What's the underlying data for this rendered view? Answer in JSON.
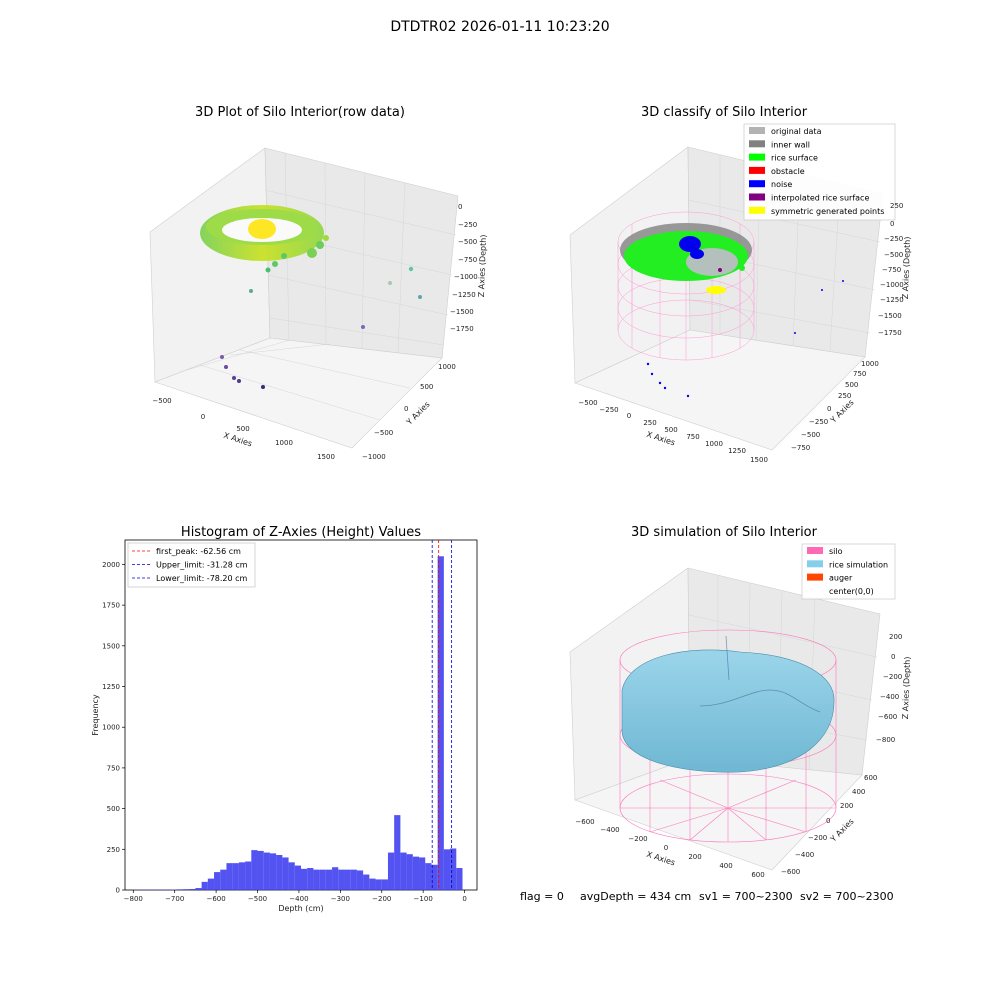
{
  "figure": {
    "suptitle": "DTDTR02 2026-01-11 10:23:20",
    "footer": {
      "flag": "flag = 0",
      "avg_depth": "avgDepth = 434 cm",
      "sv1": "sv1 = 700~2300",
      "sv2": "sv2 = 700~2300"
    }
  },
  "panels": {
    "raw": {
      "title": "3D Plot of Silo Interior(row data)",
      "xlabel": "X Axies",
      "ylabel": "Y Axies",
      "zlabel": "Z Axies (Depth)",
      "xticks": [
        "−500",
        "0",
        "500",
        "1000",
        "1500"
      ],
      "yticks": [
        "−1000",
        "−500",
        "0",
        "500",
        "1000"
      ],
      "zticks": [
        "0",
        "−250",
        "−500",
        "−750",
        "−1000",
        "−1250",
        "−1500",
        "−1750"
      ]
    },
    "classify": {
      "title": "3D classify of Silo Interior",
      "xlabel": "X Axies",
      "ylabel": "Y Axies",
      "zlabel": "Z Axies (Depth)",
      "xticks": [
        "−500",
        "−250",
        "0",
        "250",
        "500",
        "750",
        "1000",
        "1250",
        "1500"
      ],
      "yticks": [
        "−750",
        "−500",
        "−250",
        "0",
        "250",
        "500",
        "750",
        "1000"
      ],
      "zticks": [
        "250",
        "0",
        "−250",
        "−500",
        "−750",
        "−1000",
        "−1250",
        "−1500",
        "−1750"
      ],
      "legend": [
        {
          "label": "original data",
          "color": "#b3b3b3"
        },
        {
          "label": "inner wall",
          "color": "#808080"
        },
        {
          "label": "rice surface",
          "color": "#00ff00"
        },
        {
          "label": "obstacle",
          "color": "#ff0000"
        },
        {
          "label": "noise",
          "color": "#0000ff"
        },
        {
          "label": "interpolated rice surface",
          "color": "#800080"
        },
        {
          "label": "symmetric generated points",
          "color": "#ffff00"
        }
      ]
    },
    "simulation": {
      "title": "3D simulation of Silo Interior",
      "xlabel": "X Axies",
      "ylabel": "Y Axies",
      "zlabel": "Z Axies (Depth)",
      "xticks": [
        "−600",
        "−400",
        "−200",
        "0",
        "200",
        "400",
        "600"
      ],
      "yticks": [
        "−600",
        "−400",
        "−200",
        "0",
        "200",
        "400",
        "600"
      ],
      "zticks": [
        "200",
        "0",
        "−200",
        "−400",
        "−600",
        "−800"
      ],
      "legend": [
        {
          "label": "silo",
          "color": "#ff69b4"
        },
        {
          "label": "rice simulation",
          "color": "#87ceeb"
        },
        {
          "label": "auger",
          "color": "#ff4500"
        },
        {
          "label": "center(0,0)",
          "color": "#ffffff"
        }
      ]
    }
  },
  "chart_data": {
    "type": "bar",
    "title": "Histogram of Z-Axies (Height) Values",
    "xlabel": "Depth (cm)",
    "ylabel": "Frequency",
    "xlim": [
      -820,
      30
    ],
    "ylim": [
      0,
      2150
    ],
    "xticks": [
      -800,
      -700,
      -600,
      -500,
      -400,
      -300,
      -200,
      -100,
      0
    ],
    "yticks": [
      0,
      250,
      500,
      750,
      1000,
      1250,
      1500,
      1750,
      2000
    ],
    "bin_width": 15,
    "bin_starts": [
      -800,
      -785,
      -770,
      -755,
      -740,
      -725,
      -710,
      -695,
      -680,
      -665,
      -650,
      -635,
      -620,
      -605,
      -590,
      -575,
      -560,
      -545,
      -530,
      -515,
      -500,
      -485,
      -470,
      -455,
      -440,
      -425,
      -410,
      -395,
      -380,
      -365,
      -350,
      -335,
      -320,
      -305,
      -290,
      -275,
      -260,
      -245,
      -230,
      -215,
      -200,
      -185,
      -170,
      -155,
      -140,
      -125,
      -110,
      -95,
      -80,
      -65,
      -50,
      -35,
      -20
    ],
    "values": [
      2,
      2,
      2,
      2,
      2,
      2,
      3,
      4,
      5,
      6,
      12,
      50,
      70,
      110,
      125,
      165,
      165,
      170,
      175,
      245,
      240,
      230,
      225,
      215,
      200,
      170,
      150,
      130,
      135,
      125,
      125,
      125,
      140,
      125,
      125,
      125,
      120,
      95,
      70,
      65,
      65,
      230,
      460,
      230,
      220,
      205,
      200,
      165,
      155,
      2050,
      250,
      255,
      135
    ],
    "color": "#4040f0",
    "lines": [
      {
        "label": "first_peak: -62.56 cm",
        "x": -62.56,
        "color": "#ff0000"
      },
      {
        "label": "Upper_limit: -31.28 cm",
        "x": -31.28,
        "color": "#0000cc"
      },
      {
        "label": "Lower_limit: -78.20 cm",
        "x": -78.2,
        "color": "#0000cc"
      }
    ],
    "legend_position": "upper-left"
  }
}
